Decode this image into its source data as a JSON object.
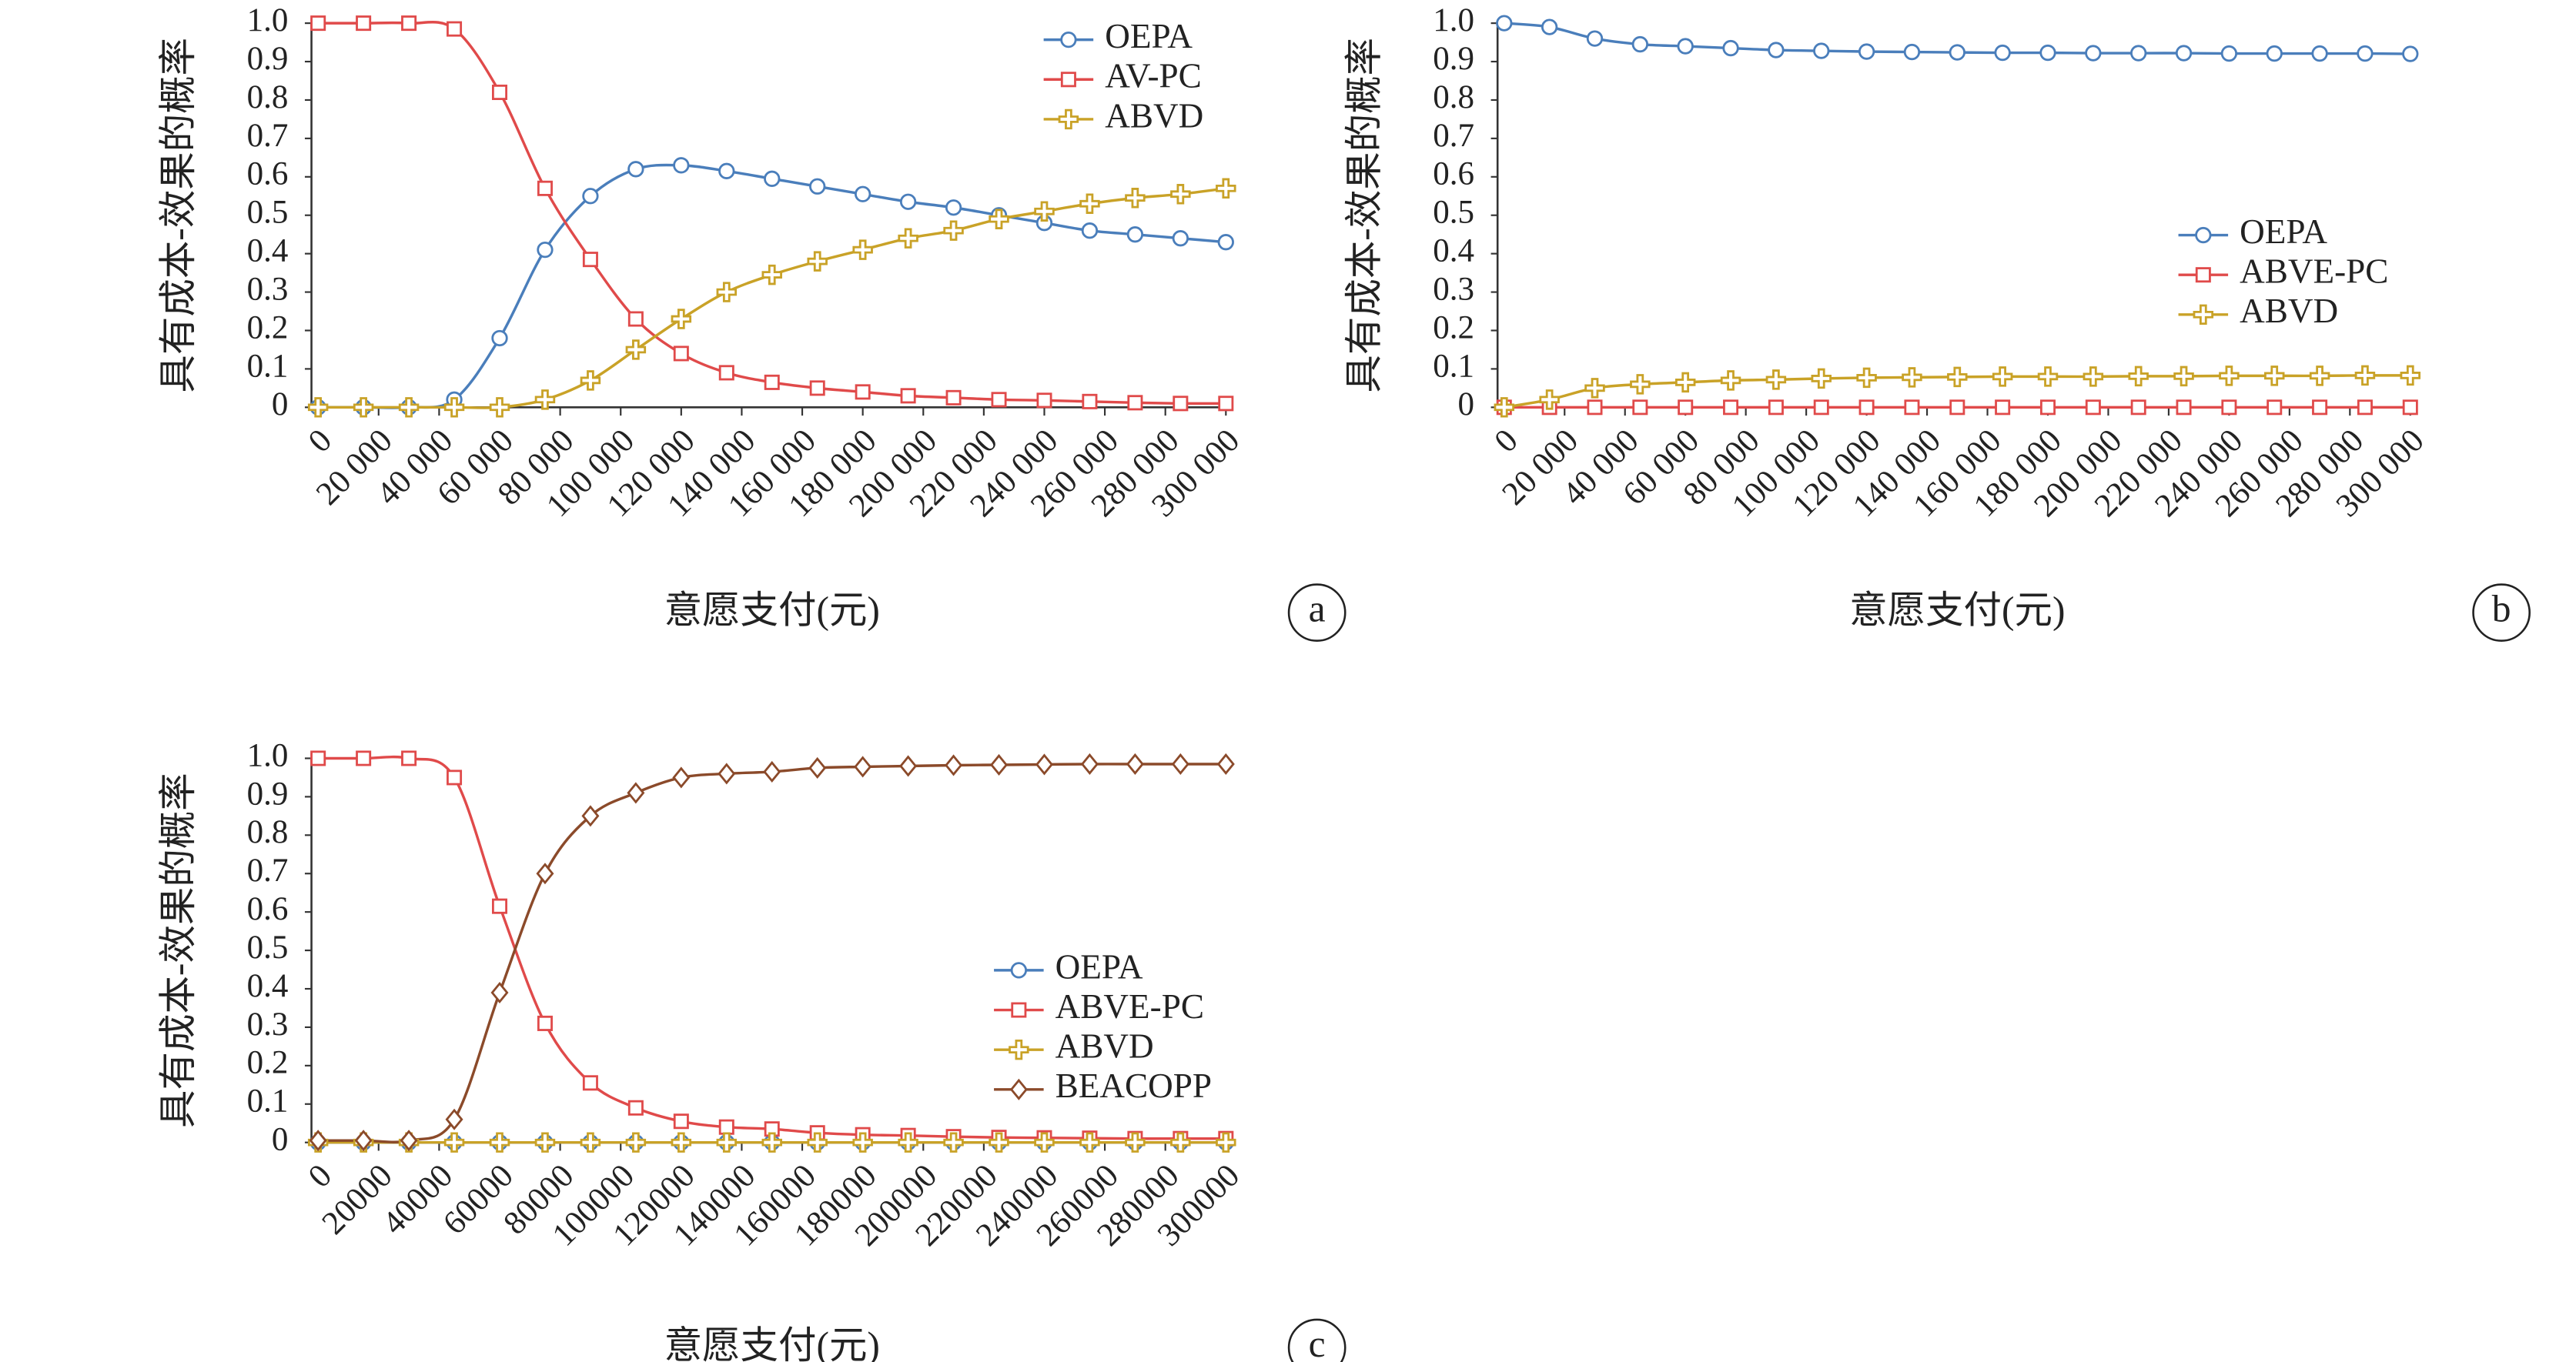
{
  "chart_data": [
    {
      "type": "line",
      "label": "a",
      "x_label": "意愿支付(元)",
      "y_label": "具有成本-效果的概率",
      "x": [
        0,
        15000,
        30000,
        45000,
        60000,
        75000,
        90000,
        105000,
        120000,
        135000,
        150000,
        165000,
        180000,
        195000,
        210000,
        225000,
        240000,
        255000,
        270000,
        285000,
        300000
      ],
      "xlim": [
        0,
        300000
      ],
      "xticks": [
        0,
        {
          "value": 20000,
          "label": "20 000"
        },
        {
          "value": 40000,
          "label": "40 000"
        },
        {
          "value": 60000,
          "label": "60 000"
        },
        {
          "value": 80000,
          "label": "80 000"
        },
        {
          "value": 100000,
          "label": "100 000"
        },
        {
          "value": 120000,
          "label": "120 000"
        },
        {
          "value": 140000,
          "label": "140 000"
        },
        {
          "value": 160000,
          "label": "160 000"
        },
        {
          "value": 180000,
          "label": "180 000"
        },
        {
          "value": 200000,
          "label": "200 000"
        },
        {
          "value": 220000,
          "label": "220 000"
        },
        {
          "value": 240000,
          "label": "240 000"
        },
        {
          "value": 260000,
          "label": "260 000"
        },
        {
          "value": 280000,
          "label": "280 000"
        },
        {
          "value": 300000,
          "label": "300 000"
        }
      ],
      "ylim": [
        0,
        1
      ],
      "yticks": [
        0,
        0.1,
        0.2,
        0.3,
        0.4,
        0.5,
        0.6,
        0.7,
        0.8,
        0.9,
        {
          "value": 1,
          "label": "1.0"
        }
      ],
      "legend": "upper right",
      "series": [
        {
          "name": "OEPA",
          "color": "#4a7ebb",
          "marker": "circle",
          "values": [
            0,
            0,
            0,
            0.02,
            0.18,
            0.41,
            0.55,
            0.62,
            0.63,
            0.615,
            0.595,
            0.575,
            0.555,
            0.535,
            0.52,
            0.5,
            0.48,
            0.46,
            0.45,
            0.44,
            0.43
          ]
        },
        {
          "name": "AV-PC",
          "color": "#e04a4a",
          "marker": "square",
          "values": [
            1,
            1,
            1,
            0.985,
            0.82,
            0.57,
            0.385,
            0.23,
            0.14,
            0.09,
            0.065,
            0.05,
            0.04,
            0.03,
            0.025,
            0.02,
            0.018,
            0.015,
            0.012,
            0.01,
            0.01
          ]
        },
        {
          "name": "ABVD",
          "color": "#c9a227",
          "marker": "plus",
          "values": [
            0,
            0,
            0,
            0,
            0,
            0.02,
            0.07,
            0.15,
            0.23,
            0.3,
            0.345,
            0.38,
            0.41,
            0.44,
            0.46,
            0.49,
            0.51,
            0.53,
            0.545,
            0.555,
            0.57
          ]
        }
      ]
    },
    {
      "type": "line",
      "label": "b",
      "x_label": "意愿支付(元)",
      "y_label": "具有成本-效果的概率",
      "x": [
        0,
        15000,
        30000,
        45000,
        60000,
        75000,
        90000,
        105000,
        120000,
        135000,
        150000,
        165000,
        180000,
        195000,
        210000,
        225000,
        240000,
        255000,
        270000,
        285000,
        300000
      ],
      "xlim": [
        0,
        300000
      ],
      "xticks": [
        0,
        {
          "value": 20000,
          "label": "20 000"
        },
        {
          "value": 40000,
          "label": "40 000"
        },
        {
          "value": 60000,
          "label": "60 000"
        },
        {
          "value": 80000,
          "label": "80 000"
        },
        {
          "value": 100000,
          "label": "100 000"
        },
        {
          "value": 120000,
          "label": "120 000"
        },
        {
          "value": 140000,
          "label": "140 000"
        },
        {
          "value": 160000,
          "label": "160 000"
        },
        {
          "value": 180000,
          "label": "180 000"
        },
        {
          "value": 200000,
          "label": "200 000"
        },
        {
          "value": 220000,
          "label": "220 000"
        },
        {
          "value": 240000,
          "label": "240 000"
        },
        {
          "value": 260000,
          "label": "260 000"
        },
        {
          "value": 280000,
          "label": "280 000"
        },
        {
          "value": 300000,
          "label": "300 000"
        }
      ],
      "ylim": [
        0,
        1
      ],
      "yticks": [
        0,
        0.1,
        0.2,
        0.3,
        0.4,
        0.5,
        0.6,
        0.7,
        0.8,
        0.9,
        {
          "value": 1,
          "label": "1.0"
        }
      ],
      "legend": "center right",
      "series": [
        {
          "name": "OEPA",
          "color": "#4a7ebb",
          "marker": "circle",
          "values": [
            1,
            0.99,
            0.96,
            0.945,
            0.94,
            0.935,
            0.93,
            0.928,
            0.926,
            0.925,
            0.924,
            0.923,
            0.923,
            0.922,
            0.922,
            0.922,
            0.921,
            0.921,
            0.921,
            0.921,
            0.92
          ]
        },
        {
          "name": "ABVE-PC",
          "color": "#e04a4a",
          "marker": "square",
          "values": [
            0,
            0,
            0,
            0,
            0,
            0,
            0,
            0,
            0,
            0,
            0,
            0,
            0,
            0,
            0,
            0,
            0,
            0,
            0,
            0,
            0
          ]
        },
        {
          "name": "ABVD",
          "color": "#c9a227",
          "marker": "plus",
          "values": [
            0,
            0.02,
            0.05,
            0.06,
            0.065,
            0.07,
            0.072,
            0.075,
            0.077,
            0.078,
            0.079,
            0.08,
            0.08,
            0.08,
            0.081,
            0.081,
            0.082,
            0.082,
            0.082,
            0.083,
            0.083
          ]
        }
      ]
    },
    {
      "type": "line",
      "label": "c",
      "x_label": "意愿支付(元)",
      "y_label": "具有成本-效果的概率",
      "x": [
        0,
        15000,
        30000,
        45000,
        60000,
        75000,
        90000,
        105000,
        120000,
        135000,
        150000,
        165000,
        180000,
        195000,
        210000,
        225000,
        240000,
        255000,
        270000,
        285000,
        300000
      ],
      "xlim": [
        0,
        300000
      ],
      "xticks": [
        0,
        20000,
        40000,
        60000,
        80000,
        100000,
        120000,
        140000,
        160000,
        180000,
        200000,
        220000,
        240000,
        260000,
        280000,
        300000
      ],
      "ylim": [
        0,
        1
      ],
      "yticks": [
        0,
        0.1,
        0.2,
        0.3,
        0.4,
        0.5,
        0.6,
        0.7,
        0.8,
        0.9,
        {
          "value": 1,
          "label": "1.0"
        }
      ],
      "legend": "center right",
      "series": [
        {
          "name": "OEPA",
          "color": "#4a7ebb",
          "marker": "circle",
          "values": [
            0,
            0,
            0,
            0,
            0,
            0,
            0,
            0,
            0,
            0,
            0,
            0,
            0,
            0,
            0,
            0,
            0,
            0,
            0,
            0,
            0
          ]
        },
        {
          "name": "ABVE-PC",
          "color": "#e04a4a",
          "marker": "square",
          "values": [
            1,
            1,
            1,
            0.95,
            0.615,
            0.31,
            0.155,
            0.09,
            0.055,
            0.04,
            0.035,
            0.025,
            0.02,
            0.018,
            0.015,
            0.013,
            0.012,
            0.011,
            0.01,
            0.01,
            0.01
          ]
        },
        {
          "name": "ABVD",
          "color": "#c9a227",
          "marker": "plus",
          "values": [
            0,
            0,
            0,
            0,
            0,
            0,
            0,
            0,
            0,
            0,
            0,
            0,
            0,
            0,
            0,
            0,
            0,
            0,
            0,
            0,
            0
          ]
        },
        {
          "name": "BEACOPP",
          "color": "#8b4a2a",
          "marker": "diamond",
          "values": [
            0.005,
            0.005,
            0.005,
            0.06,
            0.39,
            0.7,
            0.85,
            0.91,
            0.95,
            0.96,
            0.965,
            0.975,
            0.978,
            0.98,
            0.982,
            0.983,
            0.984,
            0.985,
            0.985,
            0.985,
            0.985
          ]
        }
      ]
    }
  ]
}
